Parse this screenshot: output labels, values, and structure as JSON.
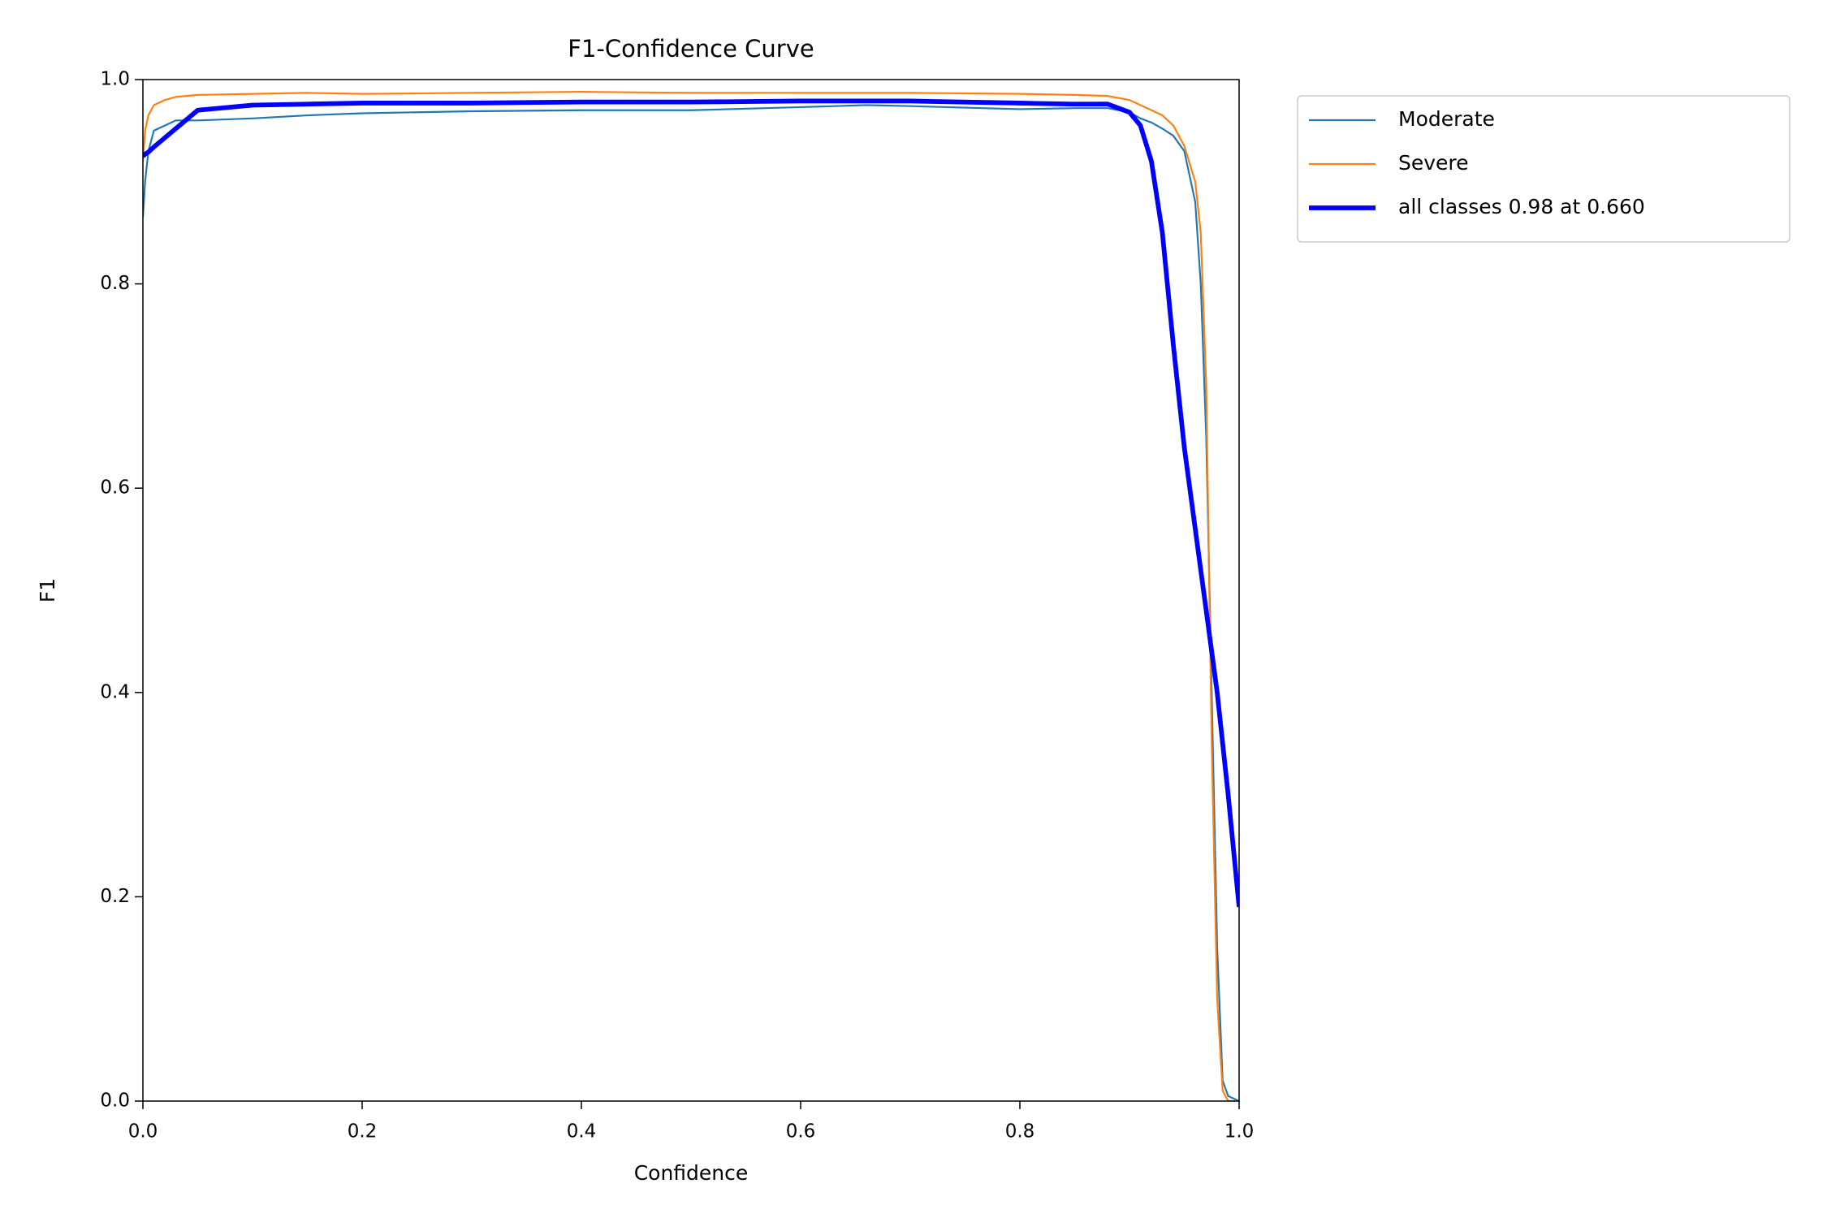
{
  "chart_data": {
    "type": "line",
    "title": "F1-Confidence Curve",
    "xlabel": "Confidence",
    "ylabel": "F1",
    "x": [
      0,
      0.002,
      0.005,
      0.01,
      0.02,
      0.03,
      0.05,
      0.1,
      0.15,
      0.2,
      0.3,
      0.4,
      0.5,
      0.6,
      0.66,
      0.7,
      0.8,
      0.85,
      0.88,
      0.9,
      0.91,
      0.92,
      0.93,
      0.94,
      0.95,
      0.96,
      0.965,
      0.97,
      0.975,
      0.98,
      0.985,
      0.99,
      1.0
    ],
    "series": [
      {
        "name": "Moderate",
        "color": "#1f77b4",
        "linewidth": 1.5,
        "values": [
          0.865,
          0.9,
          0.93,
          0.95,
          0.955,
          0.96,
          0.96,
          0.962,
          0.965,
          0.967,
          0.969,
          0.97,
          0.97,
          0.973,
          0.975,
          0.974,
          0.971,
          0.972,
          0.972,
          0.968,
          0.962,
          0.958,
          0.952,
          0.945,
          0.93,
          0.88,
          0.8,
          0.65,
          0.4,
          0.15,
          0.02,
          0.005,
          0
        ]
      },
      {
        "name": "Severe",
        "color": "#ff7f0e",
        "linewidth": 1.5,
        "values": [
          0.92,
          0.95,
          0.965,
          0.975,
          0.98,
          0.983,
          0.985,
          0.986,
          0.987,
          0.986,
          0.987,
          0.988,
          0.987,
          0.987,
          0.987,
          0.987,
          0.986,
          0.985,
          0.984,
          0.98,
          0.975,
          0.97,
          0.965,
          0.955,
          0.935,
          0.9,
          0.85,
          0.7,
          0.35,
          0.1,
          0.01,
          0,
          0
        ]
      },
      {
        "name": "all classes 0.98 at 0.660",
        "color": "#0000ff",
        "linewidth": 4,
        "values": [
          0.925,
          0.927,
          0.929,
          0.934,
          0.943,
          0.952,
          0.97,
          0.975,
          0.976,
          0.977,
          0.977,
          0.978,
          0.978,
          0.979,
          0.979,
          0.979,
          0.977,
          0.976,
          0.976,
          0.968,
          0.955,
          0.92,
          0.85,
          0.74,
          0.64,
          0.56,
          0.52,
          0.48,
          0.44,
          0.4,
          0.35,
          0.3,
          0.19
        ]
      }
    ],
    "xlim": [
      0,
      1
    ],
    "ylim": [
      0,
      1
    ],
    "xticks": [
      {
        "value": 0,
        "label": "0.0"
      },
      0.2,
      0.4,
      0.6,
      0.8,
      {
        "value": 1,
        "label": "1.0"
      }
    ],
    "yticks": [
      {
        "value": 0,
        "label": "0.0"
      },
      0.2,
      0.4,
      0.6,
      0.8,
      {
        "value": 1,
        "label": "1.0"
      }
    ],
    "legend": "outside upper right"
  }
}
